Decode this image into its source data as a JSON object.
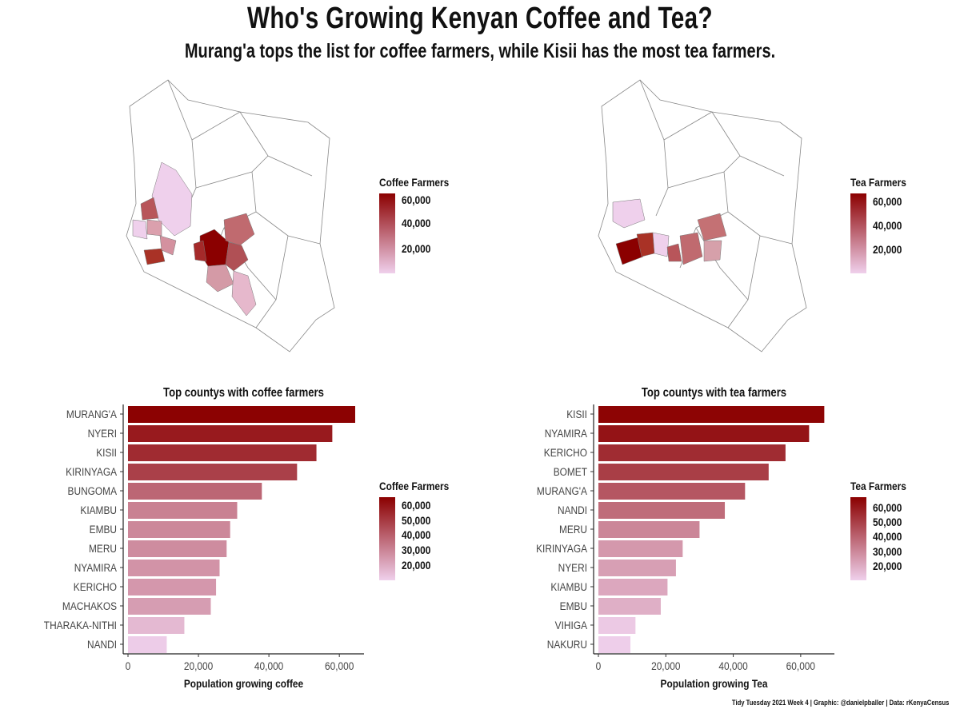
{
  "title": "Who's Growing Kenyan Coffee and Tea?",
  "subtitle": "Murang'a tops the list for coffee farmers, while Kisii has the most tea farmers.",
  "caption": "Tidy Tuesday 2021 Week 4 | Graphic: @danielpballer | Data: rKenyaCensus",
  "colors": {
    "low": "#efd0ec",
    "high": "#8b0000",
    "axis": "#333333"
  },
  "map_legends": {
    "coffee": {
      "title": "Coffee Farmers",
      "labels": [
        "60,000",
        "40,000",
        "20,000"
      ]
    },
    "tea": {
      "title": "Tea Farmers",
      "labels": [
        "60,000",
        "40,000",
        "20,000"
      ]
    }
  },
  "bar_legends": {
    "coffee": {
      "title": "Coffee Farmers",
      "labels": [
        "60,000",
        "50,000",
        "40,000",
        "30,000",
        "20,000"
      ]
    },
    "tea": {
      "title": "Tea Farmers",
      "labels": [
        "60,000",
        "50,000",
        "40,000",
        "30,000",
        "20,000"
      ]
    }
  },
  "chart_data": [
    {
      "type": "bar",
      "orientation": "horizontal",
      "title": "Top countys with coffee farmers",
      "xlabel": "Population growing coffee",
      "ylabel": "",
      "xlim": [
        0,
        67000
      ],
      "xticks": [
        "0",
        "20,000",
        "40,000",
        "60,000"
      ],
      "xtick_values": [
        0,
        20000,
        40000,
        60000
      ],
      "categories": [
        "MURANG'A",
        "NYERI",
        "KISII",
        "KIRINYAGA",
        "BUNGOMA",
        "KIAMBU",
        "EMBU",
        "MERU",
        "NYAMIRA",
        "KERICHO",
        "MACHAKOS",
        "THARAKA-NITHI",
        "NANDI"
      ],
      "values": [
        64500,
        58000,
        53500,
        48000,
        38000,
        31000,
        29000,
        28000,
        26000,
        25000,
        23500,
        16000,
        11000
      ],
      "color_range": [
        10000,
        65000
      ]
    },
    {
      "type": "bar",
      "orientation": "horizontal",
      "title": "Top countys with tea farmers",
      "xlabel": "Population growing Tea",
      "ylabel": "",
      "xlim": [
        0,
        70000
      ],
      "xticks": [
        "0",
        "20,000",
        "40,000",
        "60,000"
      ],
      "xtick_values": [
        0,
        20000,
        40000,
        60000
      ],
      "categories": [
        "KISII",
        "NYAMIRA",
        "KERICHO",
        "BOMET",
        "MURANG'A",
        "NANDI",
        "MERU",
        "KIRINYAGA",
        "NYERI",
        "KIAMBU",
        "EMBU",
        "VIHIGA",
        "NAKURU"
      ],
      "values": [
        67000,
        62500,
        55500,
        50500,
        43500,
        37500,
        30000,
        25000,
        23000,
        20500,
        18500,
        11000,
        9500
      ],
      "color_range": [
        9000,
        68000
      ]
    }
  ]
}
